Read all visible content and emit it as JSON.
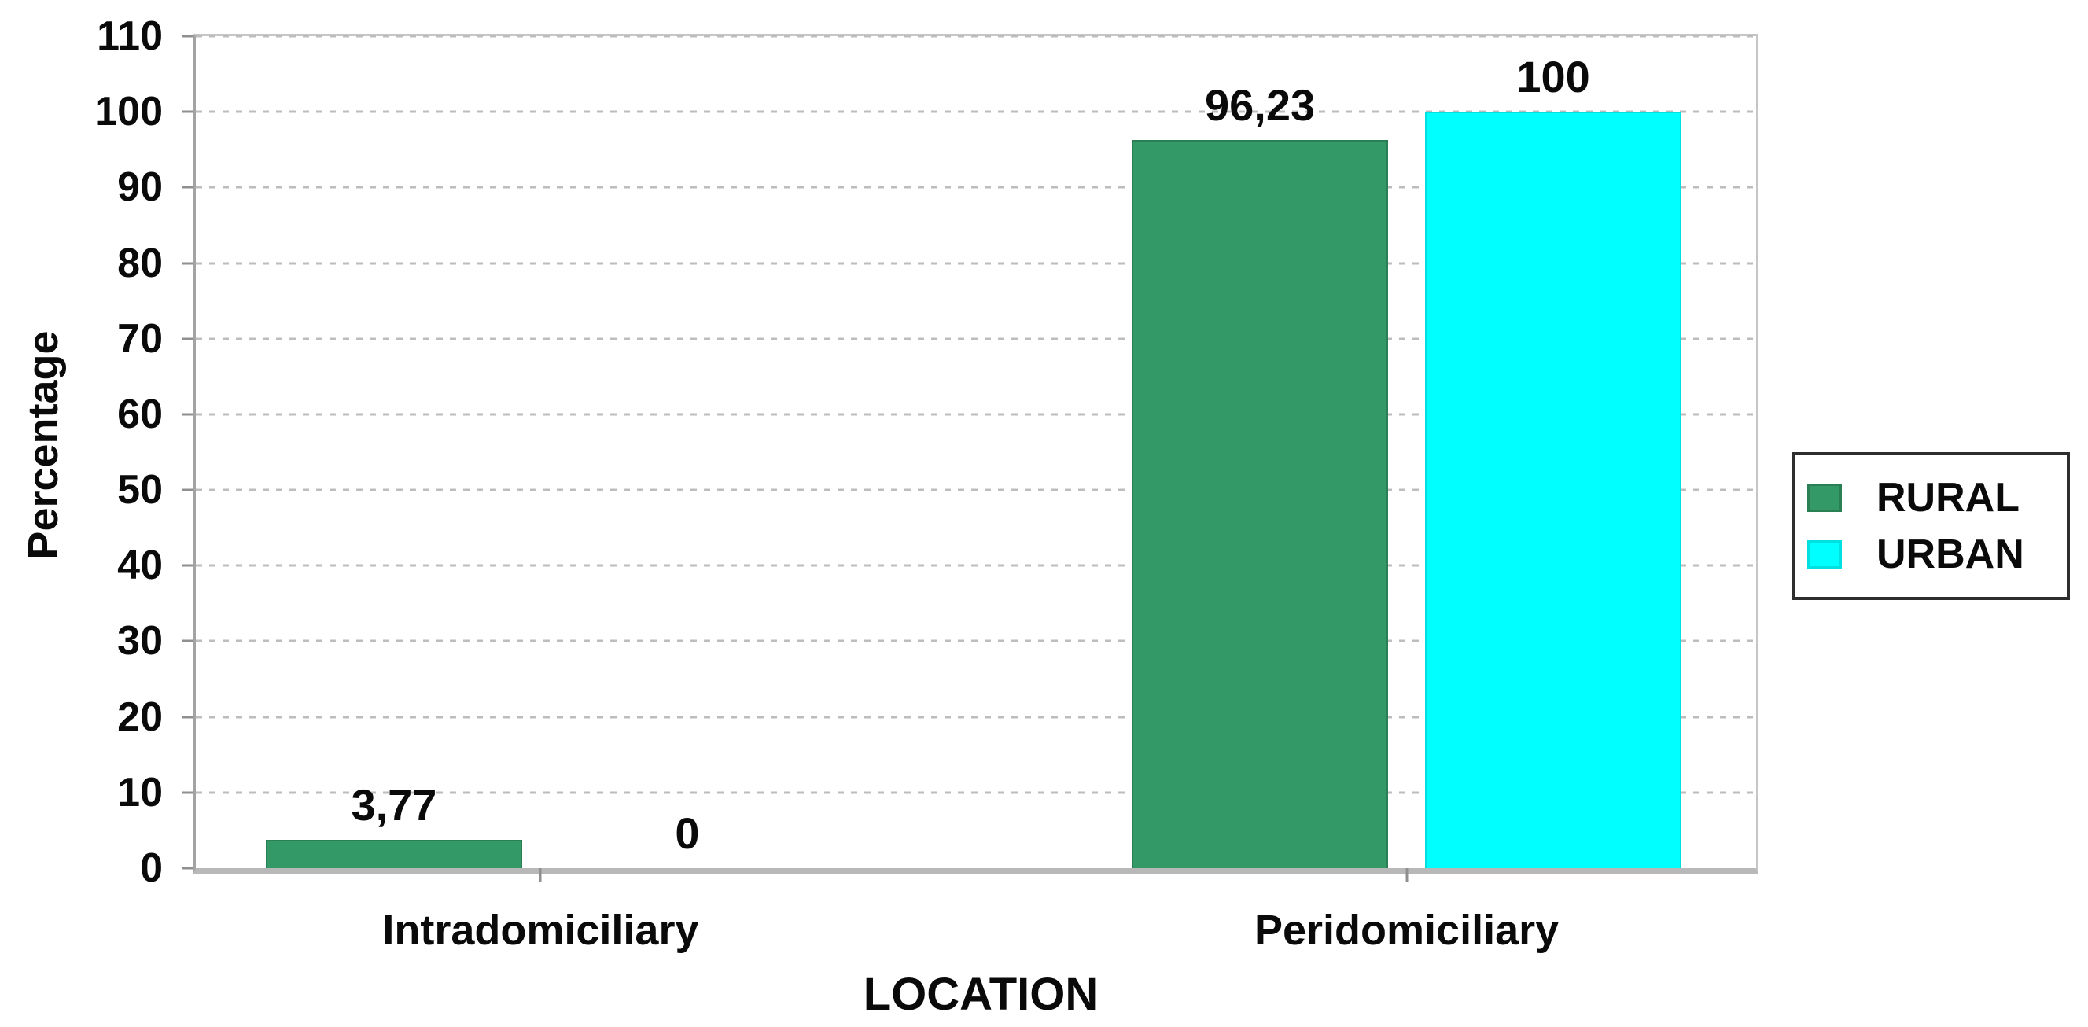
{
  "chart_data": {
    "type": "bar",
    "title": "",
    "xlabel": "LOCATION",
    "ylabel": "Percentage",
    "categories": [
      "Intradomiciliary",
      "Peridomiciliary"
    ],
    "series": [
      {
        "name": "RURAL",
        "color": "#339966",
        "border_color": "#2a7f54",
        "values": [
          3.77,
          96.23
        ],
        "labels": [
          "3,77",
          "96,23"
        ]
      },
      {
        "name": "URBAN",
        "color": "#00FFFF",
        "border_color": "#00e0e0",
        "values": [
          0,
          100
        ],
        "labels": [
          "0",
          "100"
        ]
      }
    ],
    "ylim": [
      0,
      110
    ],
    "ytick_step": 10,
    "yticks": [
      110,
      100,
      90,
      80,
      70,
      60,
      50,
      40,
      30,
      20,
      10,
      0
    ],
    "grid": "horizontal-dashed",
    "gridline_color": "#bdbdbd",
    "legend": {
      "position": "right",
      "entries": [
        "RURAL",
        "URBAN"
      ]
    },
    "layout": {
      "category_center_pct": [
        22.1,
        77.6
      ],
      "bar_width_pct": 16.4,
      "bar_gap_pct": 2.4
    }
  }
}
